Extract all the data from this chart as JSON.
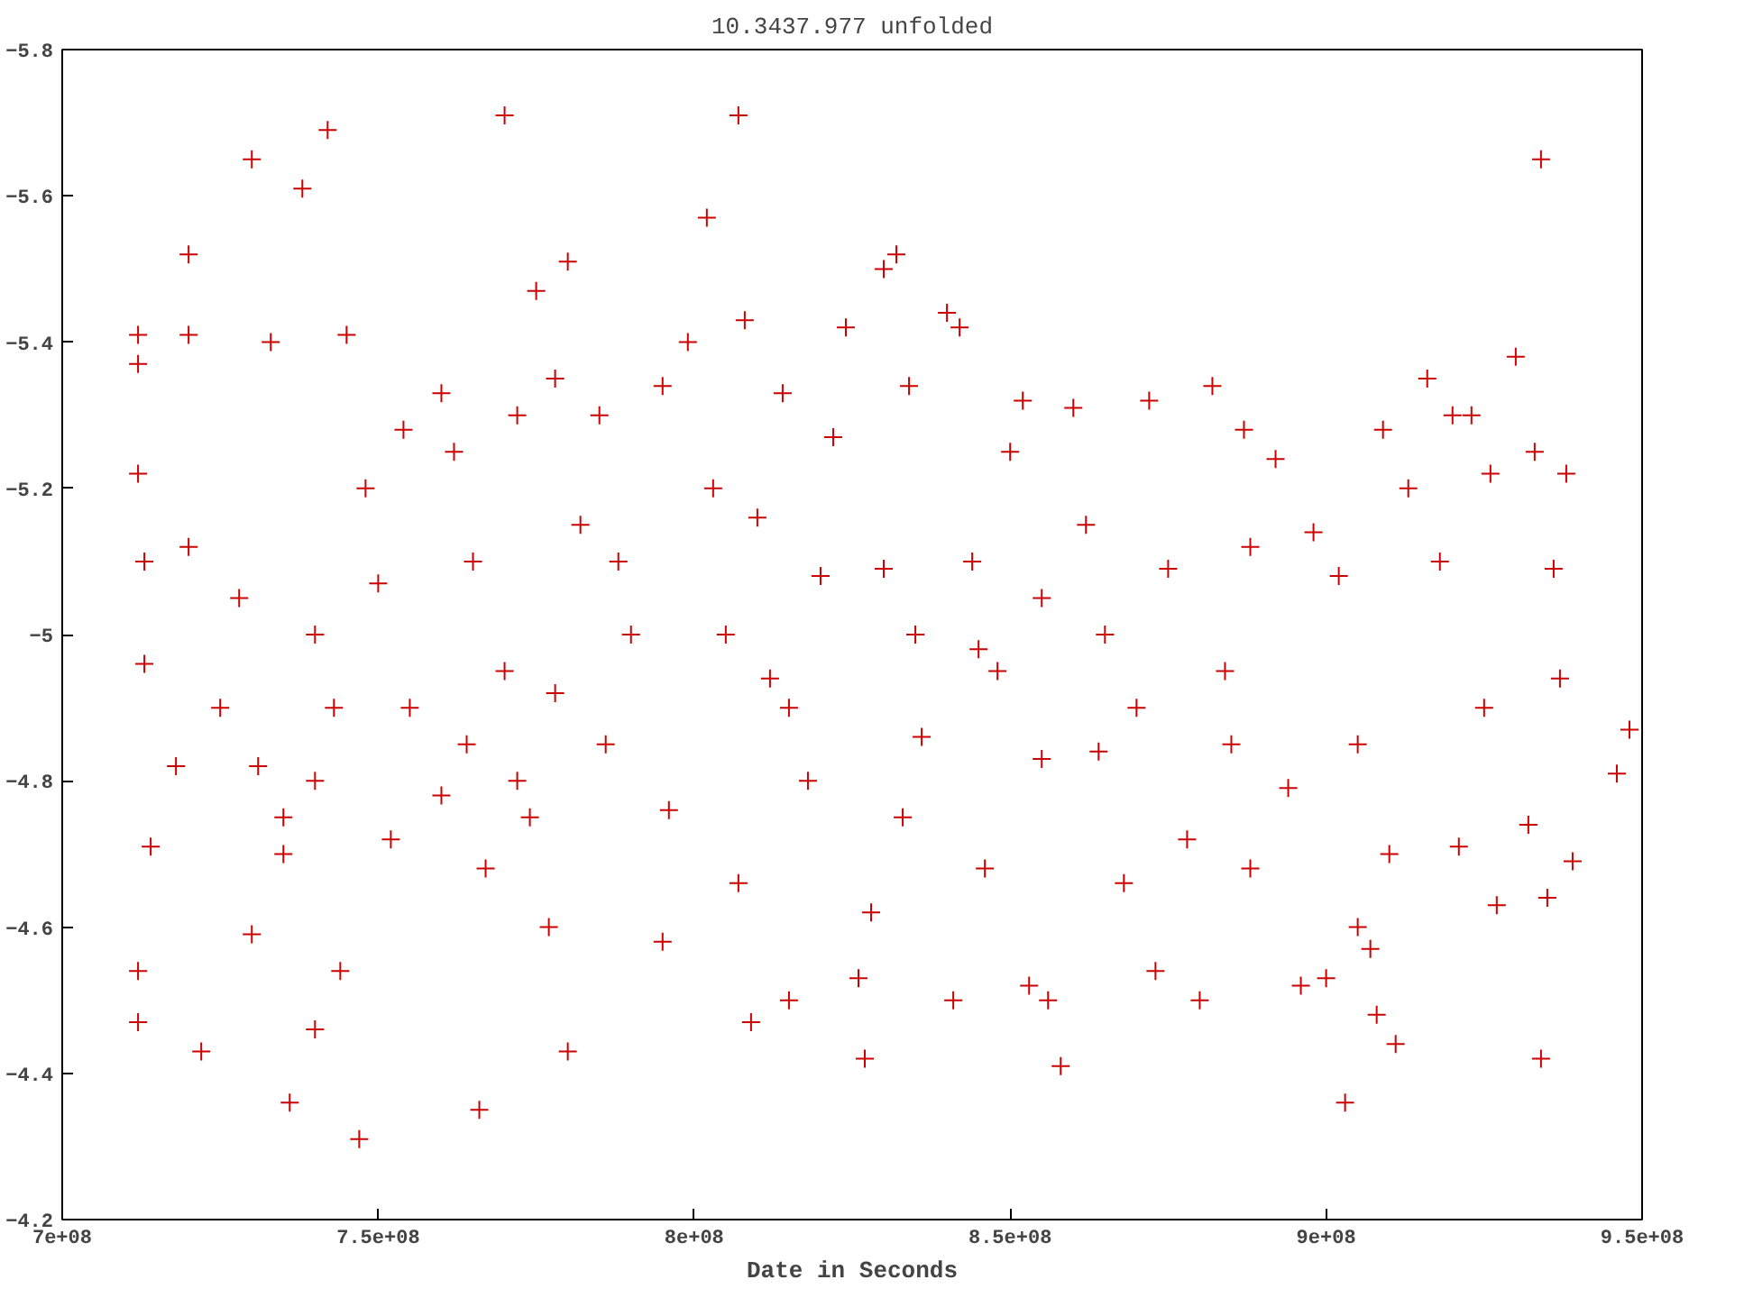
{
  "chart_data": {
    "type": "scatter",
    "title": "10.3437.977 unfolded",
    "xlabel": "Date in Seconds",
    "xlim": [
      700000000,
      950000000
    ],
    "xticks": [
      {
        "value": 700000000,
        "label": "7e+08"
      },
      {
        "value": 750000000,
        "label": "7.5e+08"
      },
      {
        "value": 800000000,
        "label": "8e+08"
      },
      {
        "value": 850000000,
        "label": "8.5e+08"
      },
      {
        "value": 900000000,
        "label": "9e+08"
      },
      {
        "value": 950000000,
        "label": "9.5e+08"
      }
    ],
    "ylim": [
      -4.2,
      -5.8
    ],
    "yticks": [
      -5.8,
      -5.6,
      -5.4,
      -5.2,
      -5,
      -4.8,
      -4.6,
      -4.4,
      -4.2
    ],
    "grid": false,
    "marker": "cross",
    "x": [
      712000000,
      712000000,
      712000000,
      713000000,
      713000000,
      714000000,
      712000000,
      712000000,
      720000000,
      720000000,
      720000000,
      722000000,
      718000000,
      730000000,
      733000000,
      728000000,
      730000000,
      731000000,
      735000000,
      738000000,
      742000000,
      745000000,
      740000000,
      736000000,
      747000000,
      744000000,
      740000000,
      743000000,
      748000000,
      750000000,
      752000000,
      754000000,
      760000000,
      762000000,
      764000000,
      766000000,
      767000000,
      770000000,
      772000000,
      775000000,
      778000000,
      780000000,
      778000000,
      780000000,
      777000000,
      774000000,
      782000000,
      785000000,
      786000000,
      788000000,
      795000000,
      795000000,
      796000000,
      799000000,
      802000000,
      803000000,
      805000000,
      807000000,
      808000000,
      807000000,
      809000000,
      810000000,
      812000000,
      814000000,
      815000000,
      818000000,
      820000000,
      822000000,
      824000000,
      826000000,
      827000000,
      828000000,
      830000000,
      832000000,
      834000000,
      830000000,
      833000000,
      836000000,
      840000000,
      842000000,
      841000000,
      844000000,
      846000000,
      848000000,
      850000000,
      852000000,
      853000000,
      856000000,
      858000000,
      855000000,
      860000000,
      862000000,
      864000000,
      868000000,
      872000000,
      873000000,
      875000000,
      878000000,
      880000000,
      882000000,
      884000000,
      887000000,
      888000000,
      888000000,
      892000000,
      894000000,
      896000000,
      898000000,
      900000000,
      902000000,
      903000000,
      905000000,
      907000000,
      908000000,
      909000000,
      910000000,
      911000000,
      913000000,
      916000000,
      918000000,
      920000000,
      921000000,
      923000000,
      925000000,
      926000000,
      927000000,
      930000000,
      932000000,
      933000000,
      934000000,
      934000000,
      935000000,
      936000000,
      937000000,
      938000000,
      939000000,
      946000000,
      948000000,
      725000000,
      735000000,
      740000000,
      755000000,
      760000000,
      765000000,
      770000000,
      772000000,
      790000000,
      815000000,
      835000000,
      845000000,
      855000000,
      865000000,
      870000000,
      885000000,
      905000000
    ],
    "series": [
      {
        "color": "#cc0000",
        "values": [
          -5.41,
          -5.37,
          -5.22,
          -5.1,
          -4.96,
          -4.71,
          -4.54,
          -4.47,
          -5.52,
          -5.41,
          -5.12,
          -4.43,
          -4.82,
          -5.65,
          -5.4,
          -5.05,
          -4.59,
          -4.82,
          -4.75,
          -5.61,
          -5.69,
          -5.41,
          -4.46,
          -4.36,
          -4.31,
          -4.54,
          -5.0,
          -4.9,
          -5.2,
          -5.07,
          -4.72,
          -5.28,
          -5.33,
          -5.25,
          -4.85,
          -4.35,
          -4.68,
          -5.71,
          -5.3,
          -5.47,
          -5.35,
          -5.51,
          -4.92,
          -4.43,
          -4.6,
          -4.75,
          -5.15,
          -5.3,
          -4.85,
          -5.1,
          -5.34,
          -4.58,
          -4.76,
          -5.4,
          -5.57,
          -5.2,
          -5.0,
          -5.71,
          -5.43,
          -4.66,
          -4.47,
          -5.16,
          -4.94,
          -5.33,
          -4.5,
          -4.8,
          -5.08,
          -5.27,
          -5.42,
          -4.53,
          -4.42,
          -4.62,
          -5.5,
          -5.52,
          -5.34,
          -5.09,
          -4.75,
          -4.86,
          -5.44,
          -5.42,
          -4.5,
          -5.1,
          -4.68,
          -4.95,
          -5.25,
          -5.32,
          -4.52,
          -4.5,
          -4.41,
          -4.83,
          -5.31,
          -5.15,
          -4.84,
          -4.66,
          -5.32,
          -4.54,
          -5.09,
          -4.72,
          -4.5,
          -5.34,
          -4.95,
          -5.28,
          -5.12,
          -4.68,
          -5.24,
          -4.79,
          -4.52,
          -5.14,
          -4.53,
          -5.08,
          -4.36,
          -4.6,
          -4.57,
          -4.48,
          -5.28,
          -4.7,
          -4.44,
          -5.2,
          -5.35,
          -5.1,
          -5.3,
          -4.71,
          -5.3,
          -4.9,
          -5.22,
          -4.63,
          -5.38,
          -4.74,
          -5.25,
          -5.65,
          -4.42,
          -4.64,
          -5.09,
          -4.94,
          -5.22,
          -4.69,
          -4.81,
          -4.87,
          -4.9,
          -4.7,
          -4.8,
          -4.9,
          -4.78,
          -5.1,
          -4.95,
          -4.8,
          -5.0,
          -4.9,
          -5.0,
          -4.98,
          -5.05,
          -5.0,
          -4.9,
          -4.85,
          -4.85
        ]
      }
    ]
  }
}
